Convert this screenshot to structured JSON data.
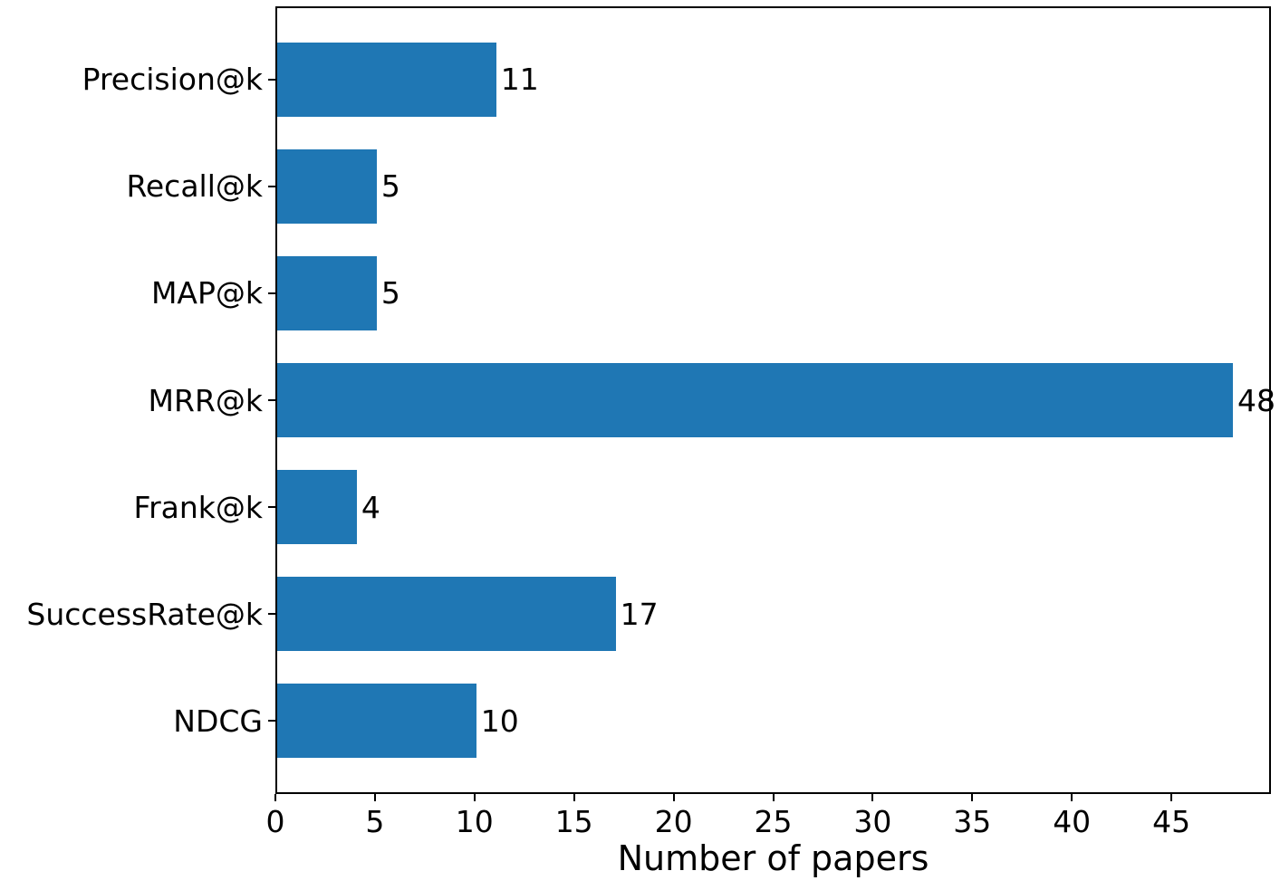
{
  "chart_data": {
    "type": "bar",
    "orientation": "horizontal",
    "title": "",
    "xlabel": "Number of papers",
    "ylabel": "",
    "categories": [
      "Precision@k",
      "Recall@k",
      "MAP@k",
      "MRR@k",
      "Frank@k",
      "SuccessRate@k",
      "NDCG"
    ],
    "values": [
      11,
      5,
      5,
      48,
      4,
      17,
      10
    ],
    "value_labels": [
      "11",
      "5",
      "5",
      "48",
      "4",
      "17",
      "10"
    ],
    "xlim": [
      0,
      50
    ],
    "xticks": [
      0,
      5,
      10,
      15,
      20,
      25,
      30,
      35,
      40,
      45
    ],
    "bar_color": "#1f77b4",
    "text_color": "#000000",
    "background_color": "#ffffff",
    "spine_color": "#000000",
    "grid": false,
    "legend_position": "none",
    "value_labels_shown": true
  }
}
